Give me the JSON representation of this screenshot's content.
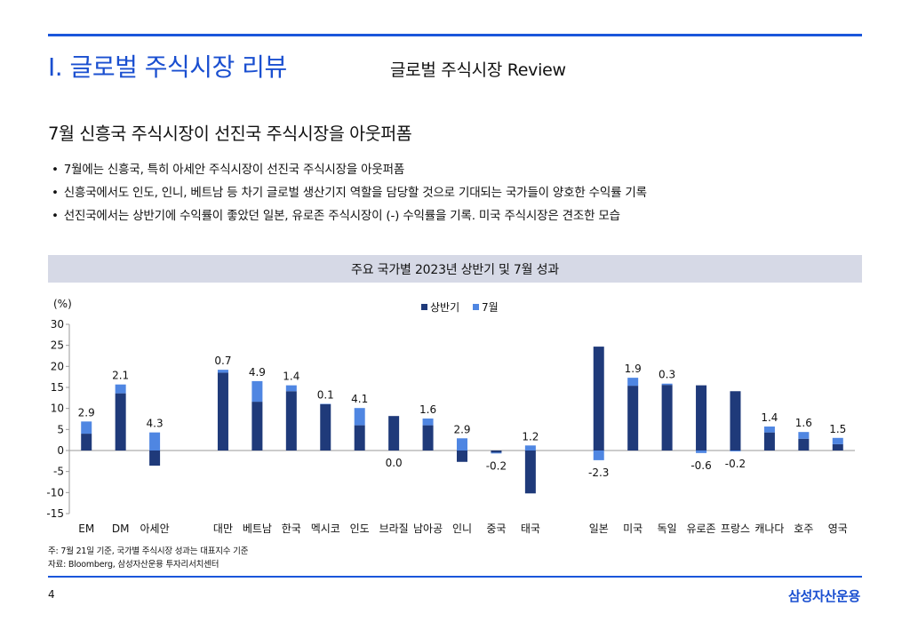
{
  "header": {
    "section_title": "I. 글로벌 주식시장 리뷰",
    "section_subtitle": "글로벌 주식시장 Review"
  },
  "headline": "7월 신흥국 주식시장이 선진국 주식시장을 아웃퍼폼",
  "bullets": [
    "7월에는 신흥국, 특히 아세안 주식시장이 선진국 주식시장을 아웃퍼폼",
    "신흥국에서도 인도, 인니, 베트남 등 차기 글로벌 생산기지 역할을 담당할 것으로 기대되는 국가들이 양호한 수익률 기록",
    "선진국에서는 상반기에 수익률이 좋았던 일본, 유로존 주식시장이 (-) 수익률을 기록. 미국 주식시장은 견조한 모습"
  ],
  "chart_data": {
    "type": "bar",
    "stacked": true,
    "title": "주요 국가별 2023년 상반기 및 7월 성과",
    "unit_label": "(%)",
    "ylim": [
      -15,
      30
    ],
    "yticks": [
      30,
      25,
      20,
      15,
      10,
      5,
      0,
      -5,
      -10,
      -15
    ],
    "legend_position": "top-center",
    "categories": [
      "EM",
      "DM",
      "아세안",
      "",
      "대만",
      "베트남",
      "한국",
      "멕시코",
      "인도",
      "브라질",
      "남아공",
      "인니",
      "중국",
      "태국",
      "",
      "일본",
      "미국",
      "독일",
      "유로존",
      "프랑스",
      "캐나다",
      "호주",
      "영국"
    ],
    "series": [
      {
        "name": "상반기",
        "color": "#1f3a7a",
        "values": [
          4.0,
          13.6,
          -3.6,
          null,
          18.5,
          11.6,
          14.1,
          11.0,
          6.0,
          8.2,
          6.0,
          -2.7,
          -0.5,
          -10.2,
          null,
          24.7,
          15.4,
          15.6,
          15.5,
          14.1,
          4.3,
          2.8,
          1.5
        ]
      },
      {
        "name": "7월",
        "color": "#4f86e2",
        "values": [
          2.9,
          2.1,
          4.3,
          null,
          0.7,
          4.9,
          1.4,
          0.1,
          4.1,
          0.0,
          1.6,
          2.9,
          -0.2,
          1.2,
          null,
          -2.3,
          1.9,
          0.3,
          -0.6,
          -0.2,
          1.4,
          1.6,
          1.5
        ]
      }
    ],
    "data_labels": [
      "2.9",
      "2.1",
      "4.3",
      "",
      "0.7",
      "4.9",
      "1.4",
      "0.1",
      "4.1",
      "0.0",
      "1.6",
      "2.9",
      "-0.2",
      "1.2",
      "",
      "-2.3",
      "1.9",
      "0.3",
      "-0.6",
      "-0.2",
      "1.4",
      "1.6",
      "1.5"
    ]
  },
  "notes": {
    "footnote": "주: 7월 21일 기준, 국가별 주식시장 성과는 대표지수 기준",
    "source": "자료: Bloomberg, 삼성자산운용 투자리서치센터"
  },
  "footer": {
    "page_number": "4",
    "brand": "삼성자산운용"
  }
}
